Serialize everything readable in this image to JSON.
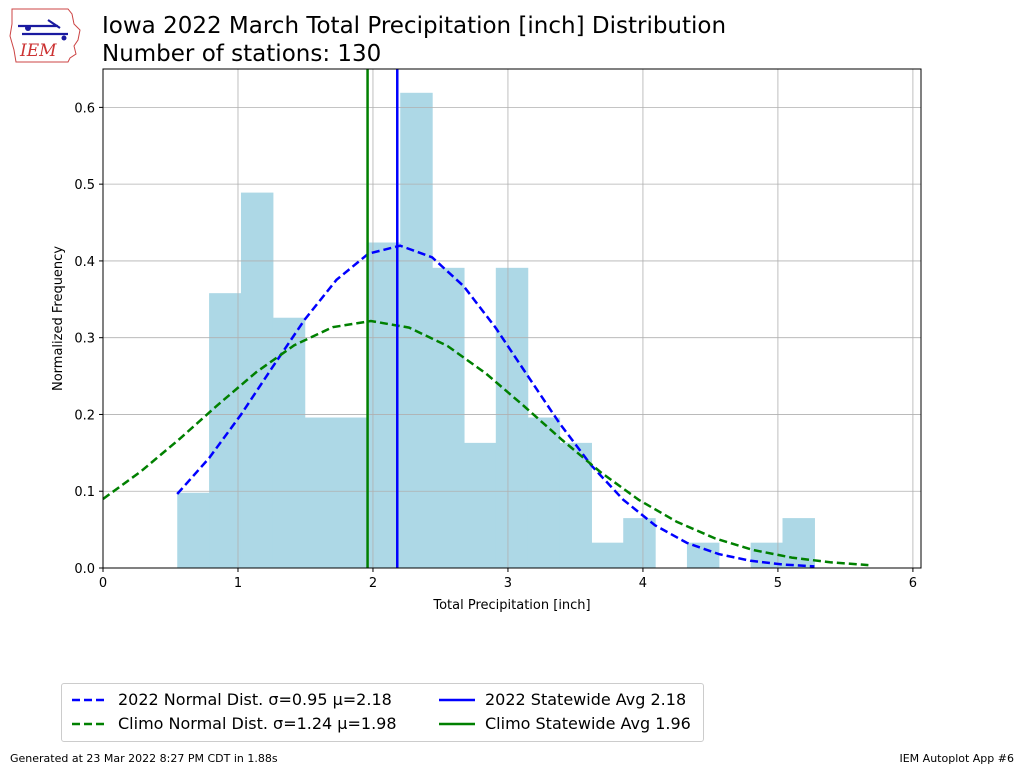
{
  "title_line1": "Iowa 2022 March Total Precipitation [inch] Distribution",
  "title_line2": "Number of stations: 130",
  "logo_text": "IEM",
  "footer_left": "Generated at 23 Mar 2022 8:27 PM CDT in 1.88s",
  "footer_right": "IEM Autoplot App #6",
  "colors": {
    "histogram": "#add8e6",
    "normal_2022": "#0000ff",
    "climo": "#008000",
    "grid": "#b0b0b0"
  },
  "legend": [
    {
      "label": "2022 Normal Dist. σ=0.95 μ=2.18",
      "style": "dashed",
      "color": "#0000ff"
    },
    {
      "label": "Climo Normal Dist. σ=1.24 μ=1.98",
      "style": "dashed",
      "color": "#008000"
    },
    {
      "label": "2022 Statewide Avg 2.18",
      "style": "solid",
      "color": "#0000ff"
    },
    {
      "label": "Climo Statewide Avg 1.96",
      "style": "solid",
      "color": "#008000"
    }
  ],
  "chart_data": {
    "type": "bar",
    "title": "Iowa 2022 March Total Precipitation [inch] Distribution",
    "subtitle": "Number of stations: 130",
    "xlabel": "Total Precipitation [inch]",
    "ylabel": "Normalized Frequency",
    "xlim": [
      0,
      6.06
    ],
    "ylim": [
      0,
      0.65
    ],
    "xticks": [
      0,
      1,
      2,
      3,
      4,
      5,
      6
    ],
    "yticks": [
      0.0,
      0.1,
      0.2,
      0.3,
      0.4,
      0.5,
      0.6
    ],
    "grid": true,
    "legend_position": "bottom",
    "histogram": {
      "bin_edges": [
        0.55,
        0.786,
        1.022,
        1.258,
        1.494,
        1.73,
        1.966,
        2.202,
        2.438,
        2.674,
        2.91,
        3.146,
        3.382,
        3.618,
        3.854,
        4.09,
        4.326,
        4.562,
        4.798,
        5.034,
        5.27
      ],
      "values": [
        0.098,
        0.358,
        0.489,
        0.326,
        0.196,
        0.196,
        0.424,
        0.619,
        0.391,
        0.163,
        0.391,
        0.196,
        0.163,
        0.033,
        0.065,
        0.0,
        0.033,
        0.0,
        0.033,
        0.065
      ]
    },
    "series": [
      {
        "name": "2022 Normal Dist. σ=0.95 μ=2.18",
        "kind": "normal_pdf",
        "mu": 2.18,
        "sigma": 0.95,
        "x_range": [
          0.55,
          5.27
        ],
        "color": "#0000ff",
        "style": "dashed"
      },
      {
        "name": "Climo Normal Dist. σ=1.24 μ=1.98",
        "kind": "normal_pdf",
        "mu": 1.98,
        "sigma": 1.24,
        "x_range": [
          0,
          5.67
        ],
        "color": "#008000",
        "style": "dashed"
      }
    ],
    "vlines": [
      {
        "name": "2022 Statewide Avg 2.18",
        "x": 2.18,
        "color": "#0000ff"
      },
      {
        "name": "Climo Statewide Avg 1.96",
        "x": 1.96,
        "color": "#008000"
      }
    ]
  }
}
